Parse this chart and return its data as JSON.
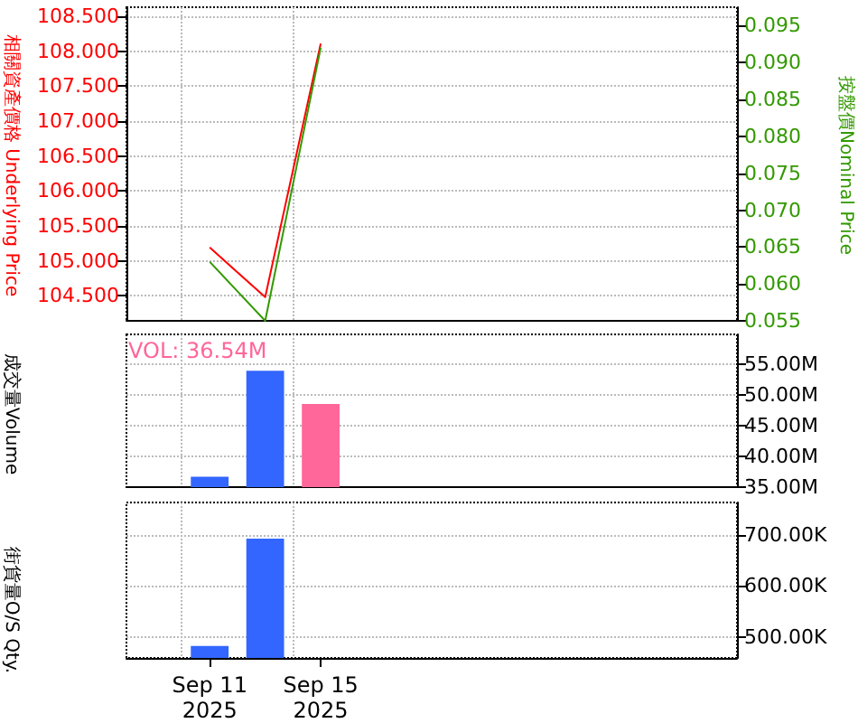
{
  "chart_data": [
    {
      "type": "line",
      "categories": [
        null,
        null,
        null,
        null,
        null,
        null,
        null,
        null,
        null,
        null,
        null
      ],
      "ylabel": "相關資產價格 Underlying Price",
      "y2label": "按盤價Nominal Price",
      "series": [
        {
          "color": "#ff0000",
          "axis": "y",
          "values": [
            null,
            105.19,
            104.48,
            108.11,
            null,
            null,
            null,
            null,
            null,
            null,
            null
          ]
        },
        {
          "color": "#339900",
          "axis": "y2",
          "values": [
            null,
            0.063,
            0.055,
            0.092,
            null,
            null,
            null,
            null,
            null,
            null,
            null
          ]
        }
      ],
      "ylim": [
        104.14,
        108.63
      ],
      "yticks": [
        {
          "value": 104.5,
          "label": "104.500"
        },
        {
          "value": 105,
          "label": "105.000"
        },
        {
          "value": 105.5,
          "label": "105.500"
        },
        {
          "value": 106,
          "label": "106.000"
        },
        {
          "value": 106.5,
          "label": "106.500"
        },
        {
          "value": 107,
          "label": "107.000"
        },
        {
          "value": 107.5,
          "label": "107.500"
        },
        {
          "value": 108,
          "label": "108.000"
        },
        {
          "value": 108.5,
          "label": "108.500"
        }
      ],
      "y2lim": [
        0.055,
        0.0975
      ],
      "y2ticks": [
        {
          "value": 0.055,
          "label": "0.055"
        },
        {
          "value": 0.06,
          "label": "0.060"
        },
        {
          "value": 0.065,
          "label": "0.065"
        },
        {
          "value": 0.07,
          "label": "0.070"
        },
        {
          "value": 0.075,
          "label": "0.075"
        },
        {
          "value": 0.08,
          "label": "0.080"
        },
        {
          "value": 0.085,
          "label": "0.085"
        },
        {
          "value": 0.09,
          "label": "0.090"
        },
        {
          "value": 0.095,
          "label": "0.095"
        }
      ],
      "grid": true,
      "tick_labels": "y",
      "marker": "none",
      "line_style": "solid"
    },
    {
      "type": "bar",
      "categories": [
        null,
        null,
        null,
        null,
        null,
        null,
        null,
        null,
        null,
        null,
        null
      ],
      "ylabel": "成交量Volume",
      "values": [
        null,
        36.7,
        53.9,
        48.5,
        null,
        null,
        null,
        null,
        null,
        null,
        null
      ],
      "colors": [
        "#3366ff",
        "#3366ff",
        "#3366ff",
        "#ff6699",
        "#3366ff",
        "#3366ff",
        "#3366ff",
        "#3366ff",
        "#3366ff",
        "#3366ff",
        "#3366ff"
      ],
      "ylim": [
        35,
        59.8
      ],
      "yticks": [
        {
          "value": 35,
          "label": "35.00M"
        },
        {
          "value": 40,
          "label": "40.00M"
        },
        {
          "value": 45,
          "label": "45.00M"
        },
        {
          "value": 50,
          "label": "50.00M"
        },
        {
          "value": 55,
          "label": "55.00M"
        }
      ],
      "annotations": [
        "VOL: 36.54M"
      ],
      "grid": true,
      "tick_labels": "y"
    },
    {
      "type": "bar",
      "categories": [
        null,
        "Sep 11\n2025",
        null,
        "Sep 15\n2025",
        null,
        null,
        null,
        null,
        null,
        null,
        null
      ],
      "ylabel": "街貨量O/S Qty.",
      "values": [
        null,
        482,
        692,
        null,
        null,
        null,
        null,
        null,
        null,
        null,
        null
      ],
      "colors": [
        "#3366ff",
        "#3366ff",
        "#3366ff",
        "#3366ff",
        "#3366ff",
        "#3366ff",
        "#3366ff",
        "#3366ff",
        "#3366ff",
        "#3366ff",
        "#3366ff"
      ],
      "ylim": [
        458.6,
        763
      ],
      "yticks": [
        {
          "value": 500,
          "label": "500.00K"
        },
        {
          "value": 600,
          "label": "600.00K"
        },
        {
          "value": 700,
          "label": "700.00K"
        }
      ],
      "grid": true
    }
  ]
}
